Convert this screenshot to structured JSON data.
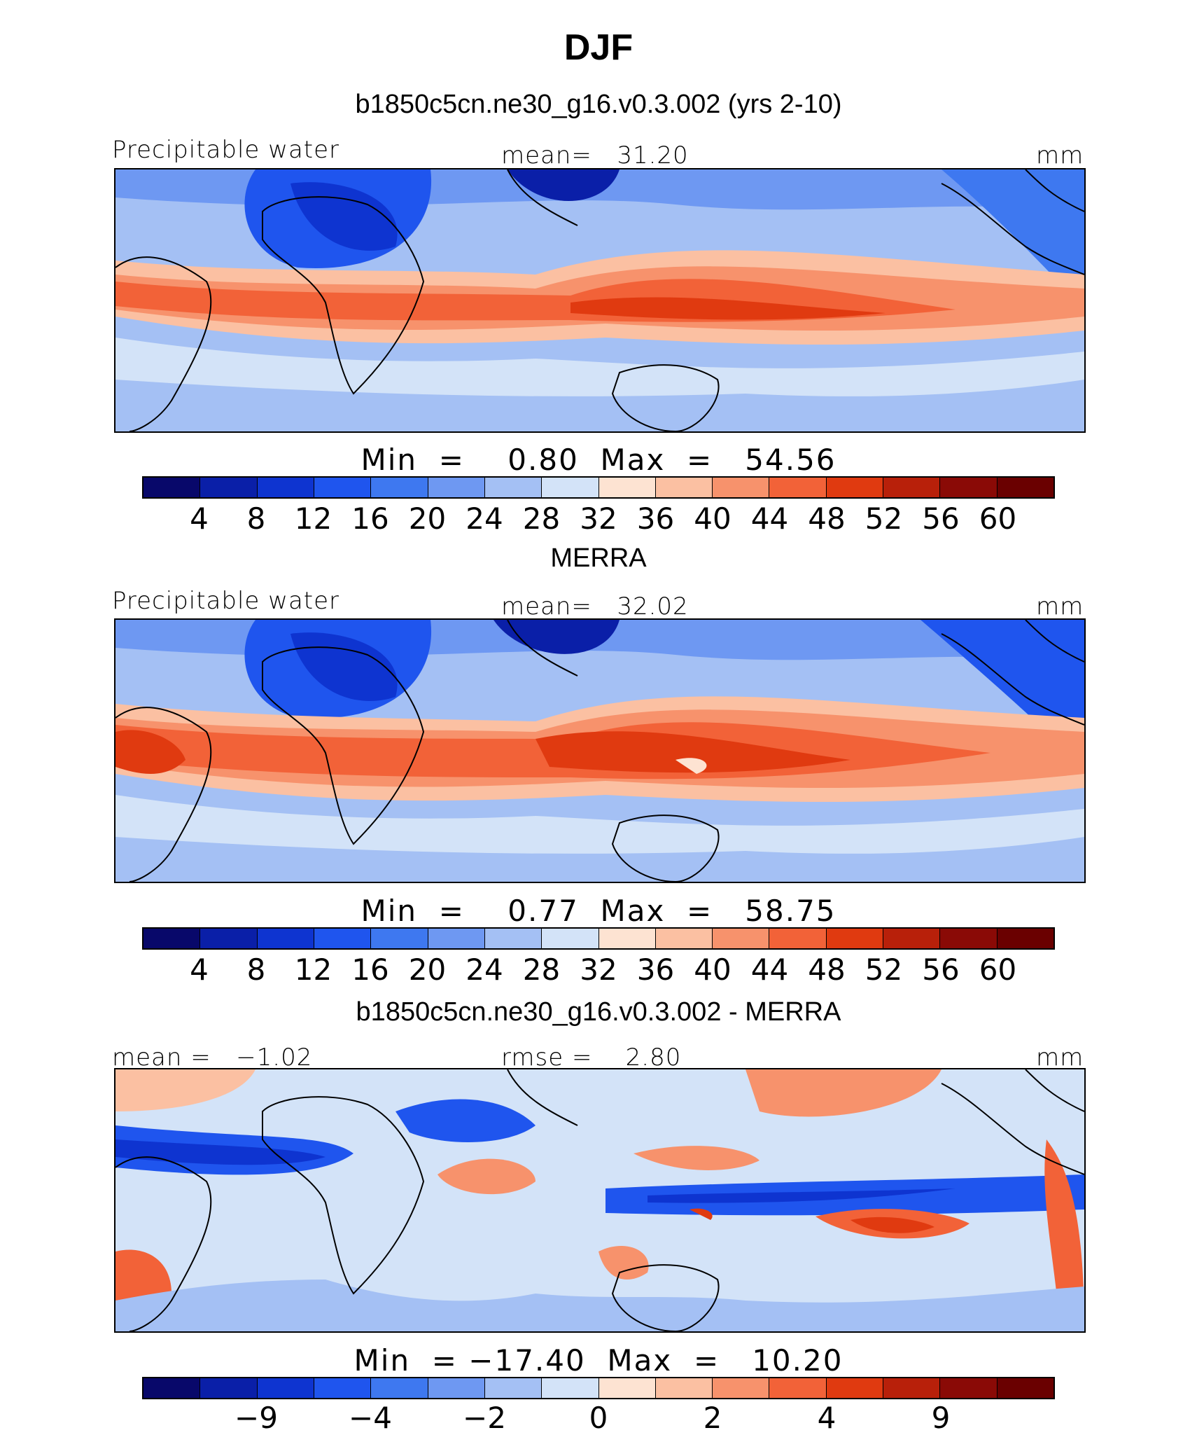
{
  "title": "DJF",
  "panels": [
    {
      "id": "model",
      "subtitle": "b1850c5cn.ne30_g16.v0.3.002 (yrs 2-10)",
      "left_label": "Precipitable water",
      "center_label": "mean=   31.20",
      "unit": "mm",
      "minmax": "Min  =    0.80  Max  =   54.56",
      "colorbar_ticks": [
        "4",
        "8",
        "12",
        "16",
        "20",
        "24",
        "28",
        "32",
        "36",
        "40",
        "44",
        "48",
        "52",
        "56",
        "60"
      ]
    },
    {
      "id": "obs",
      "subtitle": "MERRA",
      "left_label": "Precipitable water",
      "center_label": "mean=   32.02",
      "unit": "mm",
      "minmax": "Min  =    0.77  Max  =   58.75",
      "colorbar_ticks": [
        "4",
        "8",
        "12",
        "16",
        "20",
        "24",
        "28",
        "32",
        "36",
        "40",
        "44",
        "48",
        "52",
        "56",
        "60"
      ]
    },
    {
      "id": "diff",
      "subtitle": "b1850c5cn.ne30_g16.v0.3.002 - MERRA",
      "left_label": "mean =   −1.02",
      "center_label": "rmse =    2.80",
      "unit": "mm",
      "minmax": "Min  = −17.40  Max  =   10.20",
      "colorbar_ticks": [
        "−9",
        "−4",
        "−2",
        "0",
        "2",
        "4",
        "9"
      ]
    }
  ],
  "colors": {
    "full_scale": [
      "#08086a",
      "#0a1fa8",
      "#0e34d0",
      "#1f55ee",
      "#3e78f0",
      "#6e98f2",
      "#a4c0f4",
      "#d3e3f8",
      "#fde3d2",
      "#fbc0a2",
      "#f7926c",
      "#f26238",
      "#e03a10",
      "#b8200a",
      "#8a0a06",
      "#6a0000"
    ],
    "diff_scale": [
      "#08086a",
      "#0a1fa8",
      "#0e34d0",
      "#1f55ee",
      "#3e78f0",
      "#6e98f2",
      "#a4c0f4",
      "#d3e3f8",
      "#fde3d2",
      "#fbc0a2",
      "#f7926c",
      "#f26238",
      "#e03a10",
      "#b8200a",
      "#8a0a06",
      "#6a0000"
    ]
  }
}
